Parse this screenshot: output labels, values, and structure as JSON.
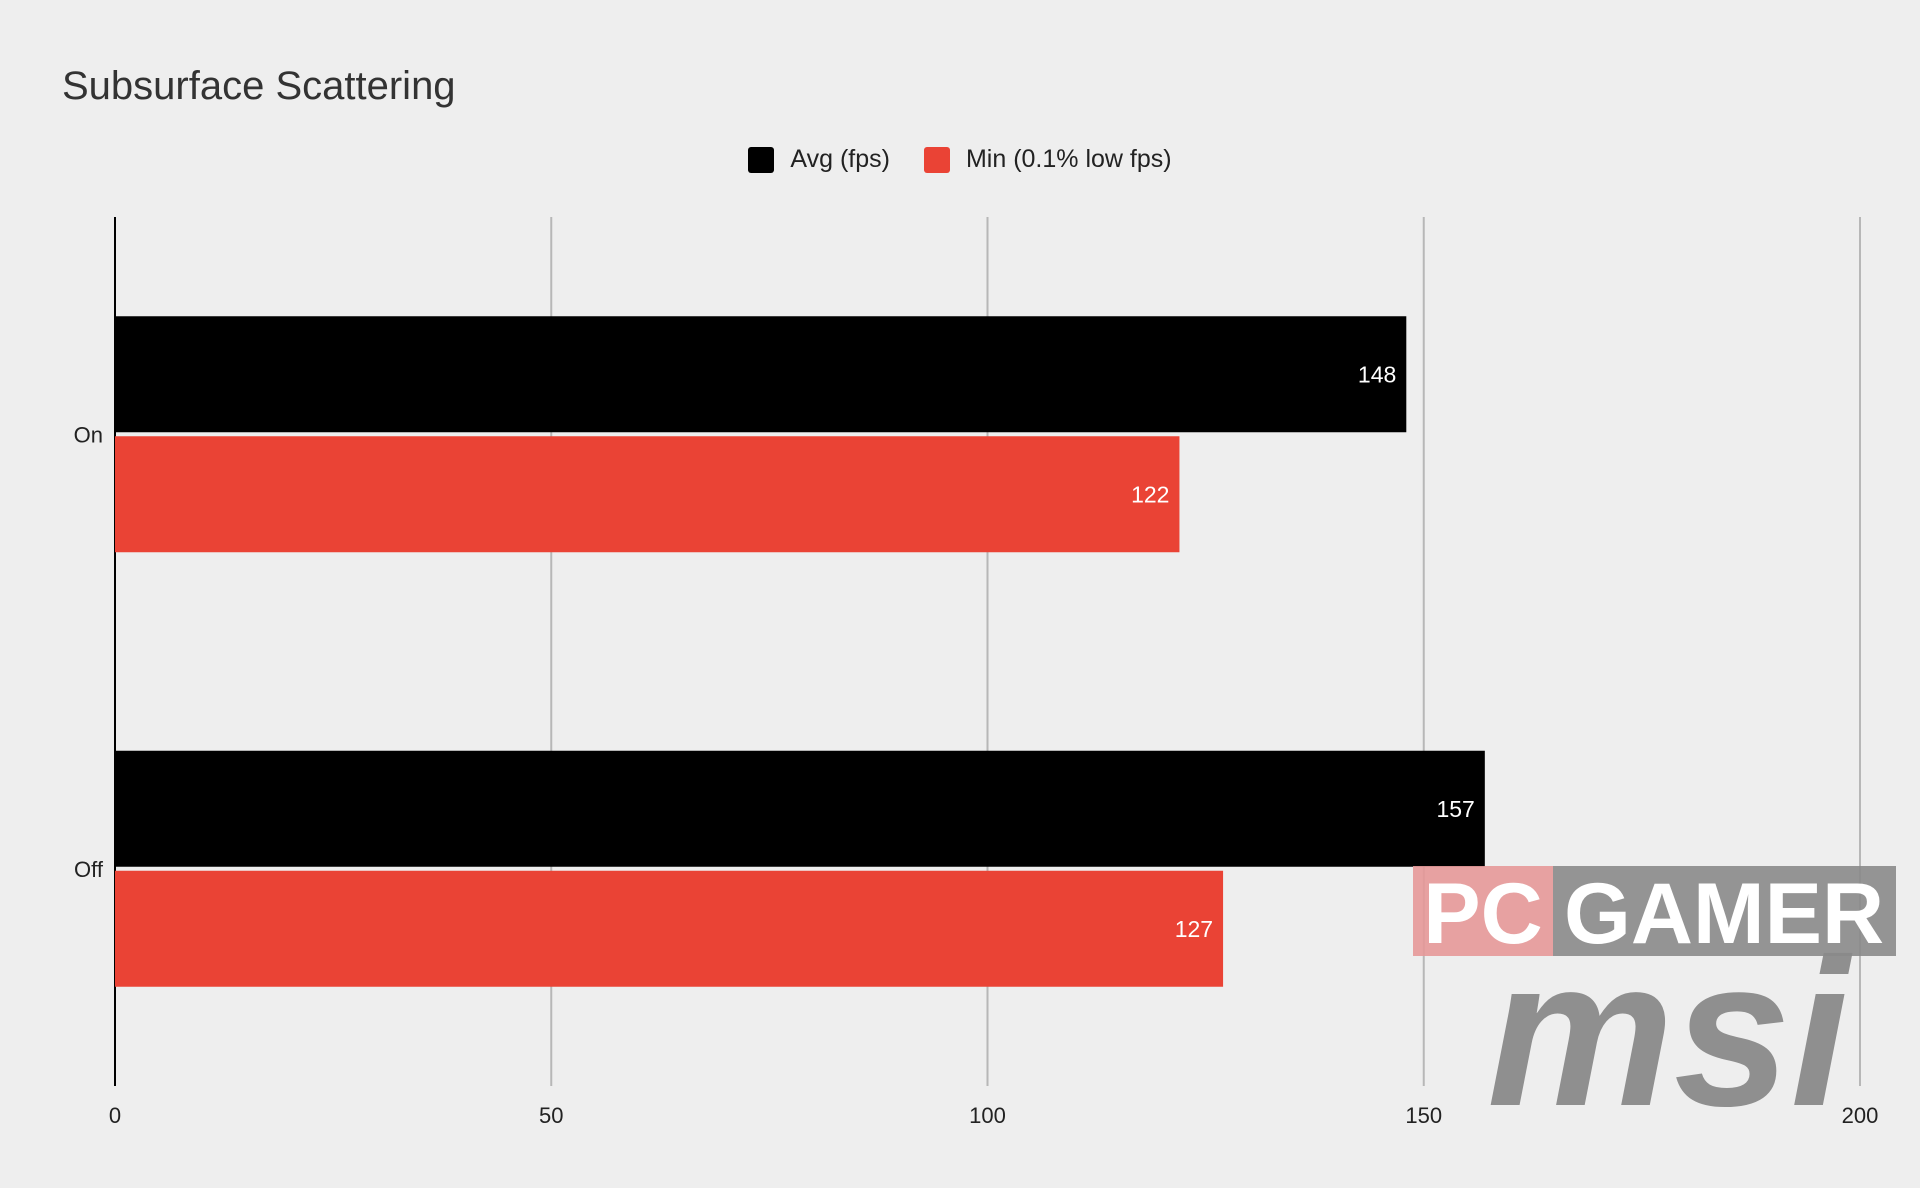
{
  "chart_data": {
    "type": "bar",
    "orientation": "horizontal",
    "title": "Subsurface Scattering",
    "categories": [
      "On",
      "Off"
    ],
    "series": [
      {
        "name": "Avg (fps)",
        "values": [
          148,
          157
        ],
        "color": "#000000"
      },
      {
        "name": "Min (0.1% low fps)",
        "values": [
          122,
          127
        ],
        "color": "#ea4335"
      }
    ],
    "xlim": [
      0,
      200
    ],
    "xticks": [
      "0",
      "50",
      "100",
      "150",
      "200"
    ],
    "grid": true,
    "legend_position": "top-center",
    "data_labels": true
  },
  "watermark": {
    "pc": "PC",
    "gamer": "GAMER",
    "msi": "msi"
  },
  "colors": {
    "background": "#eeeeee",
    "gridline": "#b7b7b7",
    "axis": "#000000",
    "watermark_pc_bg": "#e59898",
    "watermark_gamer_bg": "#8a8a8a",
    "watermark_msi": "#8a8a8a"
  }
}
